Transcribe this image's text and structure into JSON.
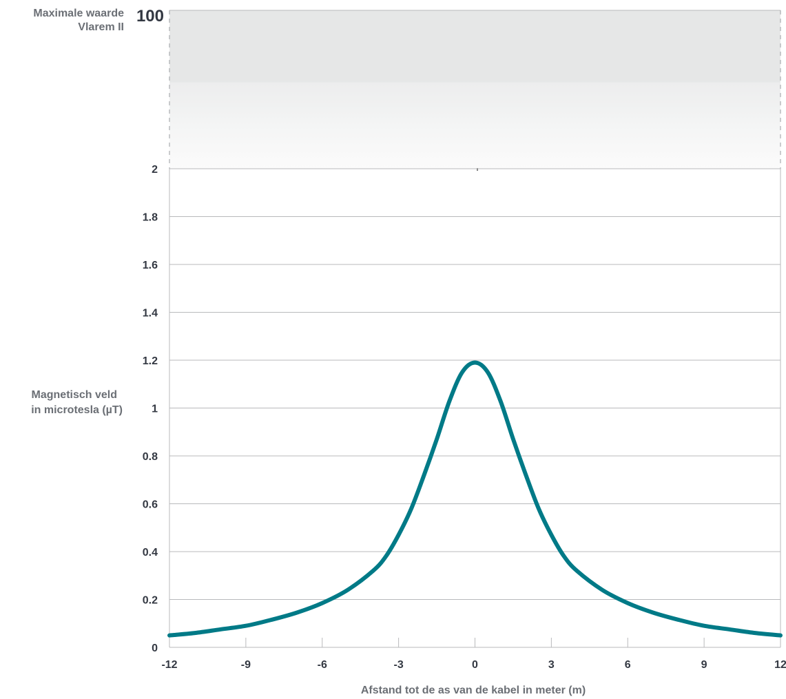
{
  "chart_data": {
    "type": "line",
    "xlabel": "Afstand tot de as van de kabel in meter (m)",
    "ylabel_lines": [
      "Magnetisch veld",
      "in microtesla (µT)"
    ],
    "limit_label_lines": [
      "Maximale waarde",
      "Vlarem II"
    ],
    "limit_value": 100,
    "limit_tick_label": "100",
    "xlim": [
      -12,
      12
    ],
    "ylim": [
      0,
      2
    ],
    "x_ticks": [
      {
        "value": -12,
        "label": "-12"
      },
      {
        "value": -9,
        "label": "-9"
      },
      {
        "value": -6,
        "label": "-6"
      },
      {
        "value": -3,
        "label": "-3"
      },
      {
        "value": 0,
        "label": "0"
      },
      {
        "value": 3,
        "label": "3"
      },
      {
        "value": 6,
        "label": "6"
      },
      {
        "value": 9,
        "label": "9"
      },
      {
        "value": 12,
        "label": "12"
      }
    ],
    "y_ticks": [
      {
        "value": 0,
        "label": "0"
      },
      {
        "value": 0.2,
        "label": "0.2"
      },
      {
        "value": 0.4,
        "label": "0.4"
      },
      {
        "value": 0.6,
        "label": "0.6"
      },
      {
        "value": 0.8,
        "label": "0.8"
      },
      {
        "value": 1,
        "label": "1"
      },
      {
        "value": 1.2,
        "label": "1.2"
      },
      {
        "value": 1.4,
        "label": "1.4"
      },
      {
        "value": 1.6,
        "label": "1.6"
      },
      {
        "value": 1.8,
        "label": "1.8"
      },
      {
        "value": 2,
        "label": "2"
      }
    ],
    "grid": true,
    "series": [
      {
        "color": "#007a87",
        "x": [
          -12,
          -11,
          -10,
          -9,
          -8,
          -7,
          -6,
          -5,
          -4,
          -3.5,
          -3,
          -2.5,
          -2,
          -1.5,
          -1,
          -0.5,
          0,
          0.5,
          1,
          1.5,
          2,
          2.5,
          3,
          3.5,
          4,
          5,
          6,
          7,
          8,
          9,
          10,
          11,
          12
        ],
        "y": [
          0.05,
          0.06,
          0.075,
          0.09,
          0.115,
          0.145,
          0.185,
          0.24,
          0.32,
          0.38,
          0.47,
          0.58,
          0.72,
          0.87,
          1.03,
          1.15,
          1.19,
          1.15,
          1.03,
          0.87,
          0.72,
          0.58,
          0.47,
          0.38,
          0.32,
          0.24,
          0.185,
          0.145,
          0.115,
          0.09,
          0.075,
          0.06,
          0.05
        ]
      }
    ]
  },
  "colors": {
    "line": "#007a87",
    "grid": "#b8b9bb",
    "tick_text": "#333842",
    "axis_title": "#6b6f75",
    "band_top": "#e6e7e7"
  }
}
